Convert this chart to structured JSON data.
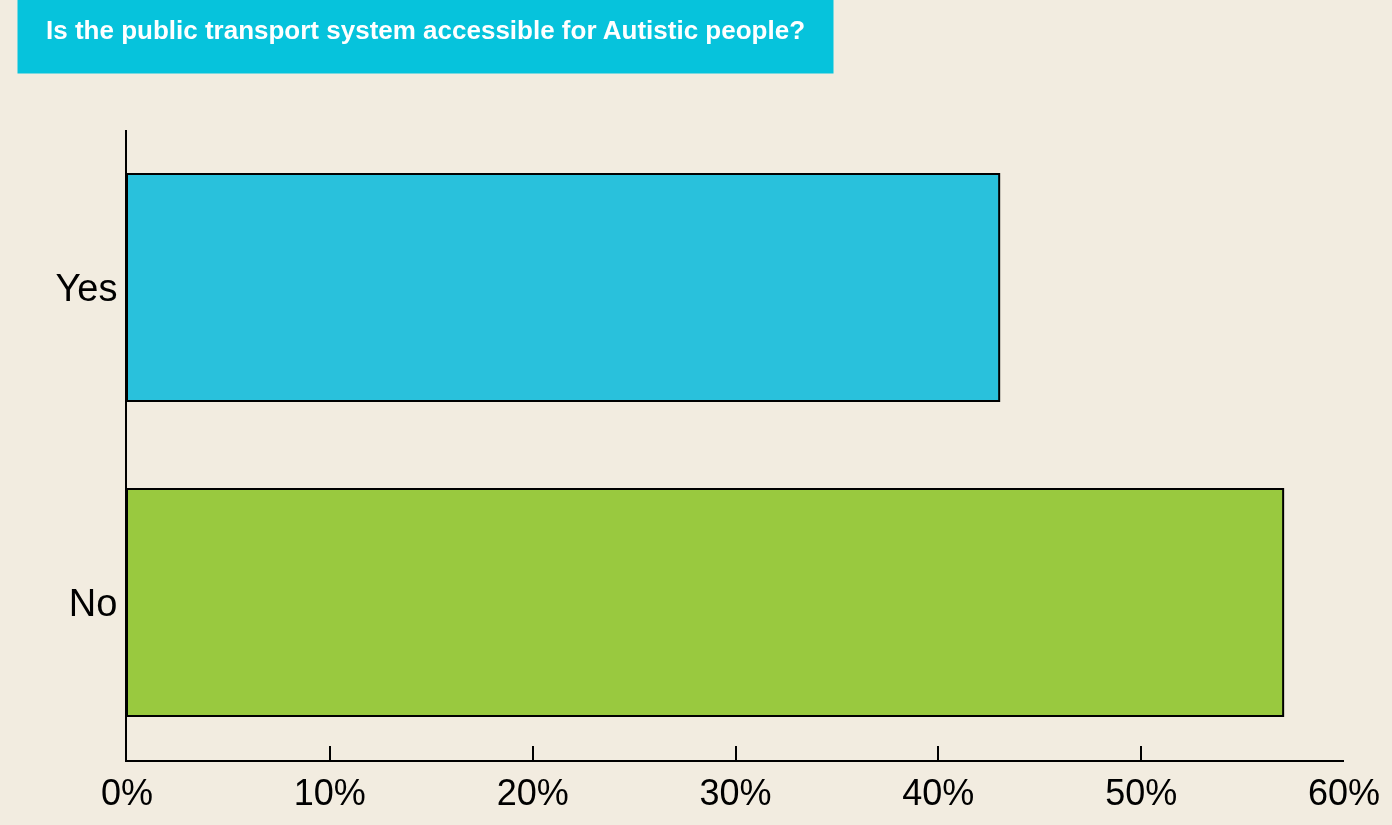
{
  "chart_data": {
    "type": "bar",
    "orientation": "horizontal",
    "title": "Is the public transport system accessible for Autistic people?",
    "categories": [
      "Yes",
      "No"
    ],
    "values": [
      43,
      57
    ],
    "colors": [
      "#29c1dc",
      "#99c93f"
    ],
    "xlim": [
      0,
      60
    ],
    "xticks": [
      {
        "value": 0,
        "label": "0%"
      },
      {
        "value": 10,
        "label": "10%"
      },
      {
        "value": 20,
        "label": "20%"
      },
      {
        "value": 30,
        "label": "30%"
      },
      {
        "value": 40,
        "label": "40%"
      },
      {
        "value": 50,
        "label": "50%"
      },
      {
        "value": 60,
        "label": "60%"
      }
    ],
    "grid": false,
    "legend": false
  }
}
